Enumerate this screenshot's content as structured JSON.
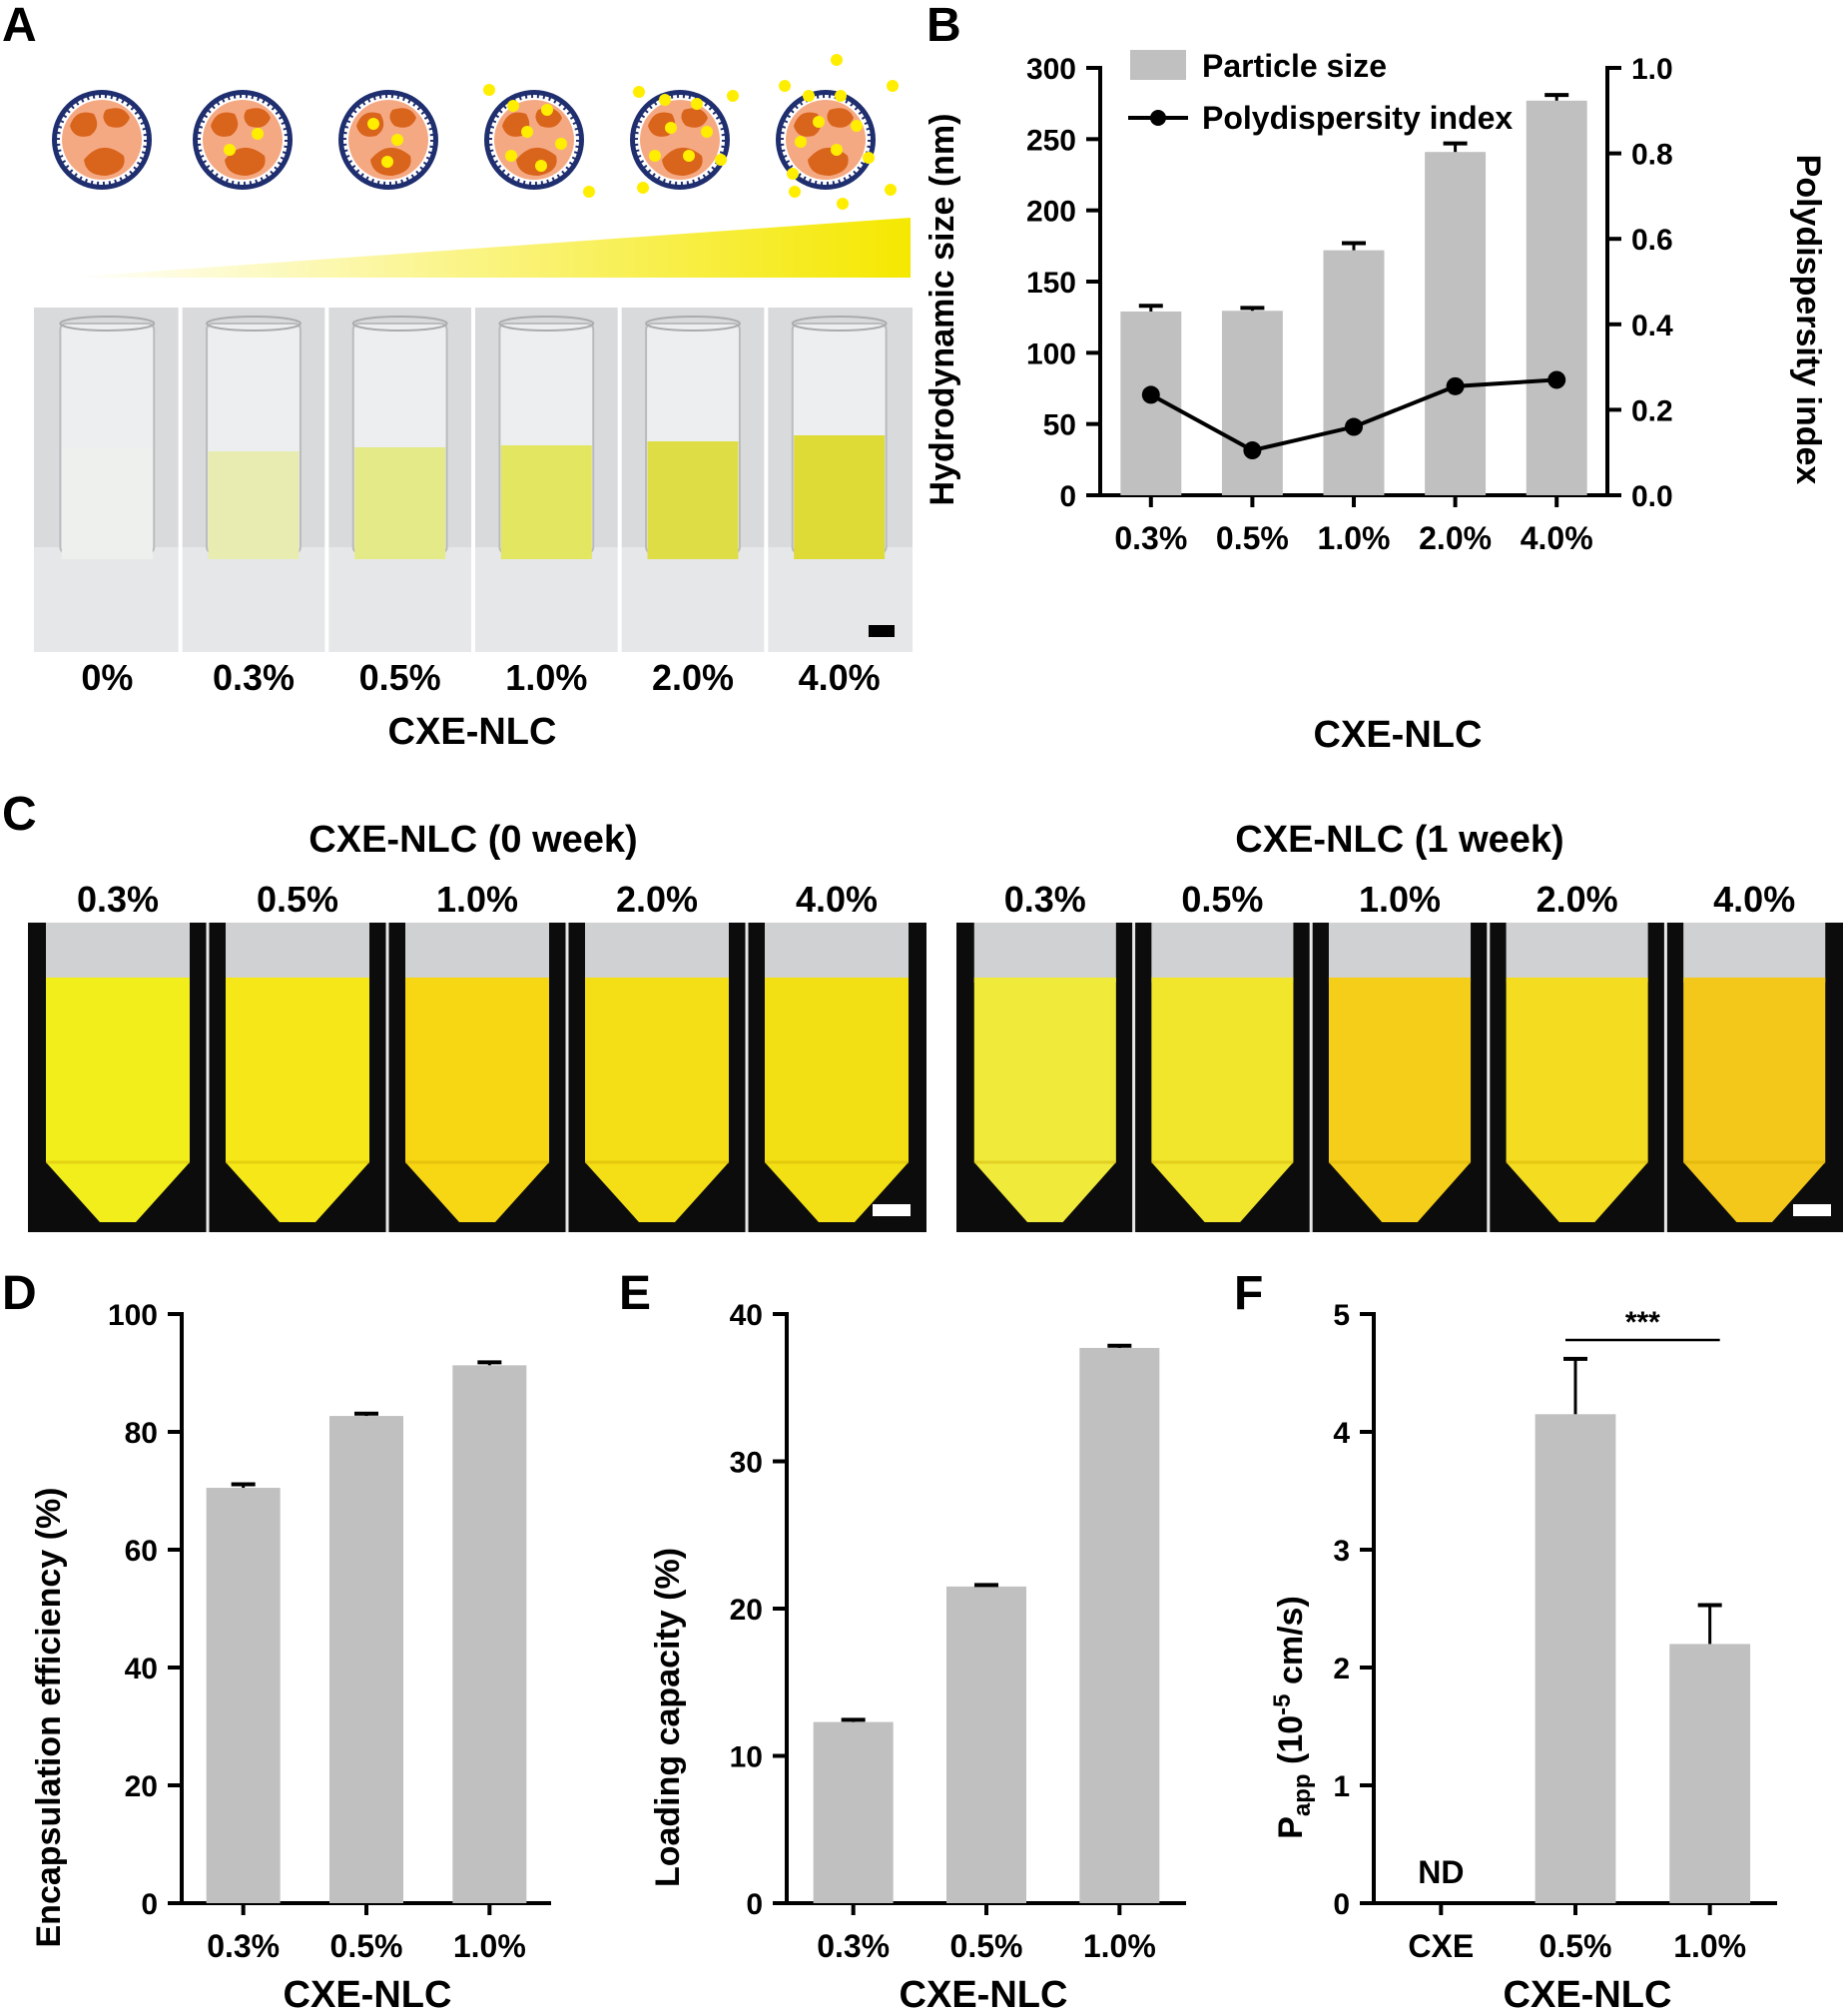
{
  "panel_letters": {
    "a": "A",
    "b": "B",
    "c": "C",
    "d": "D",
    "e": "E",
    "f": "F"
  },
  "panel_a": {
    "labels": [
      "0%",
      "0.3%",
      "0.5%",
      "1.0%",
      "2.0%",
      "4.0%"
    ],
    "xlabel": "CXE-NLC",
    "liquid_colors": [
      "#eef0ee",
      "#e8ecb0",
      "#e4ea88",
      "#e2e660",
      "#dedd45",
      "#dedb36"
    ]
  },
  "panel_c": {
    "title_left": "CXE-NLC (0 week)",
    "title_right": "CXE-NLC (1 week)",
    "labels_left": [
      "0.3%",
      "0.5%",
      "1.0%",
      "2.0%",
      "4.0%"
    ],
    "labels_right": [
      "0.3%",
      "0.5%",
      "1.0%",
      "2.0%",
      "4.0%"
    ],
    "colors_left": [
      "#f1ee1c",
      "#f6e818",
      "#f7d614",
      "#f4de16",
      "#f3e014"
    ],
    "colors_right": [
      "#f0ea3a",
      "#f2e62c",
      "#f4ce18",
      "#f4dc20",
      "#f4c81a"
    ]
  },
  "chart_data": [
    {
      "id": "B",
      "type": "bar",
      "categories": [
        "0.3%",
        "0.5%",
        "1.0%",
        "2.0%",
        "4.0%"
      ],
      "series": [
        {
          "name": "Particle size",
          "axis": "left",
          "kind": "bar",
          "values": [
            129,
            129.5,
            172,
            241,
            277
          ],
          "errors": [
            4,
            2,
            5,
            6,
            4
          ]
        },
        {
          "name": "Polydispersity index",
          "axis": "right",
          "kind": "line",
          "values": [
            0.235,
            0.105,
            0.16,
            0.255,
            0.27
          ]
        }
      ],
      "xlabel": "CXE-NLC",
      "ylabel": "Hydrodynamic size (nm)",
      "ylabel_right": "Polydispersity index",
      "ylim": [
        0,
        300
      ],
      "yticks": [
        "0",
        "50",
        "100",
        "150",
        "200",
        "250",
        "300"
      ],
      "ylim_right": [
        0,
        1.0
      ],
      "yticks_right": [
        "0.0",
        "0.2",
        "0.4",
        "0.6",
        "0.8",
        "1.0"
      ],
      "legend": [
        "Particle size",
        "Polydispersity index"
      ],
      "bar_color": "#c0c0c0"
    },
    {
      "id": "D",
      "type": "bar",
      "categories": [
        "0.3%",
        "0.5%",
        "1.0%"
      ],
      "values": [
        70.5,
        82.7,
        91.3
      ],
      "errors": [
        0.6,
        0.4,
        0.5
      ],
      "xlabel": "CXE-NLC",
      "ylabel": "Encapsulation efficiency (%)",
      "ylim": [
        0,
        100
      ],
      "yticks": [
        "0",
        "20",
        "40",
        "60",
        "80",
        "100"
      ],
      "bar_color": "#c0c0c0"
    },
    {
      "id": "E",
      "type": "bar",
      "categories": [
        "0.3%",
        "0.5%",
        "1.0%"
      ],
      "values": [
        12.3,
        21.5,
        37.7
      ],
      "errors": [
        0.15,
        0.1,
        0.15
      ],
      "xlabel": "CXE-NLC",
      "ylabel": "Loading capacity (%)",
      "ylim": [
        0,
        40
      ],
      "yticks": [
        "0",
        "10",
        "20",
        "30",
        "40"
      ],
      "bar_color": "#c0c0c0"
    },
    {
      "id": "F",
      "type": "bar",
      "categories": [
        "CXE",
        "0.5%",
        "1.0%"
      ],
      "values": [
        null,
        4.15,
        2.2
      ],
      "errors": [
        0,
        0.47,
        0.33
      ],
      "bar_labels": [
        "ND",
        "",
        ""
      ],
      "significance": "***",
      "xlabel": "CXE-NLC",
      "ylabel_main": "P",
      "ylabel_sub": "app",
      "ylabel_rest": " (10",
      "ylabel_sup": "-5",
      "ylabel_end": " cm/s)",
      "ylim": [
        0,
        5
      ],
      "yticks": [
        "0",
        "1",
        "2",
        "3",
        "4",
        "5"
      ],
      "bar_color": "#c0c0c0"
    }
  ]
}
